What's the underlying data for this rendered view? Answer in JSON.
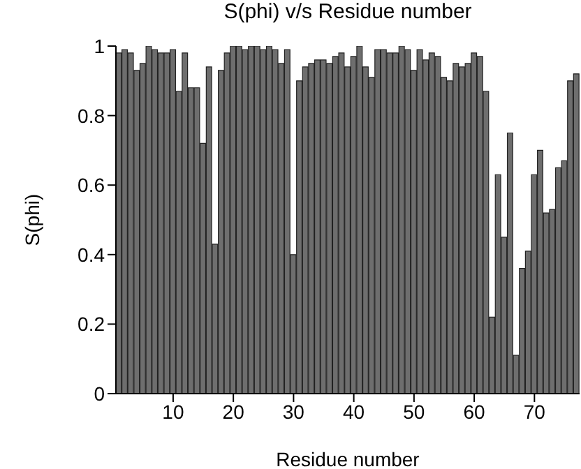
{
  "chart_data": {
    "type": "bar",
    "title": "S(phi) v/s Residue number",
    "xlabel": "Residue number",
    "ylabel": "S(phi)",
    "x": [
      1,
      2,
      3,
      4,
      5,
      6,
      7,
      8,
      9,
      10,
      11,
      12,
      13,
      14,
      15,
      16,
      17,
      18,
      19,
      20,
      21,
      22,
      23,
      24,
      25,
      26,
      27,
      28,
      29,
      30,
      31,
      32,
      33,
      34,
      35,
      36,
      37,
      38,
      39,
      40,
      41,
      42,
      43,
      44,
      45,
      46,
      47,
      48,
      49,
      50,
      51,
      52,
      53,
      54,
      55,
      56,
      57,
      58,
      59,
      60,
      61,
      62,
      63,
      64,
      65,
      66,
      67,
      68,
      69,
      70,
      71,
      72,
      73,
      74,
      75,
      76,
      77
    ],
    "values": [
      0.98,
      0.99,
      0.98,
      0.93,
      0.95,
      1.0,
      0.99,
      0.98,
      0.98,
      0.99,
      0.87,
      0.98,
      0.88,
      0.88,
      0.72,
      0.94,
      0.43,
      0.93,
      0.98,
      1.0,
      1.0,
      0.99,
      1.0,
      1.0,
      0.99,
      1.0,
      0.99,
      0.95,
      0.99,
      0.4,
      0.9,
      0.94,
      0.95,
      0.96,
      0.96,
      0.95,
      0.97,
      0.98,
      0.94,
      0.97,
      1.0,
      0.94,
      0.91,
      0.99,
      0.99,
      0.98,
      0.98,
      1.0,
      0.99,
      0.93,
      0.99,
      0.96,
      0.98,
      0.97,
      0.91,
      0.9,
      0.95,
      0.94,
      0.95,
      0.98,
      0.97,
      0.87,
      0.22,
      0.63,
      0.45,
      0.75,
      0.11,
      0.36,
      0.41,
      0.63,
      0.7,
      0.52,
      0.53,
      0.65,
      0.67,
      0.9,
      0.92
    ],
    "color": "#6e6e6e",
    "xlim": [
      0.5,
      77.5
    ],
    "xticks": [
      10,
      20,
      30,
      40,
      50,
      60,
      70
    ],
    "ylim": [
      0,
      1
    ],
    "yticks": [
      0,
      0.2,
      0.4,
      0.6,
      0.8,
      1
    ],
    "grid": false
  }
}
